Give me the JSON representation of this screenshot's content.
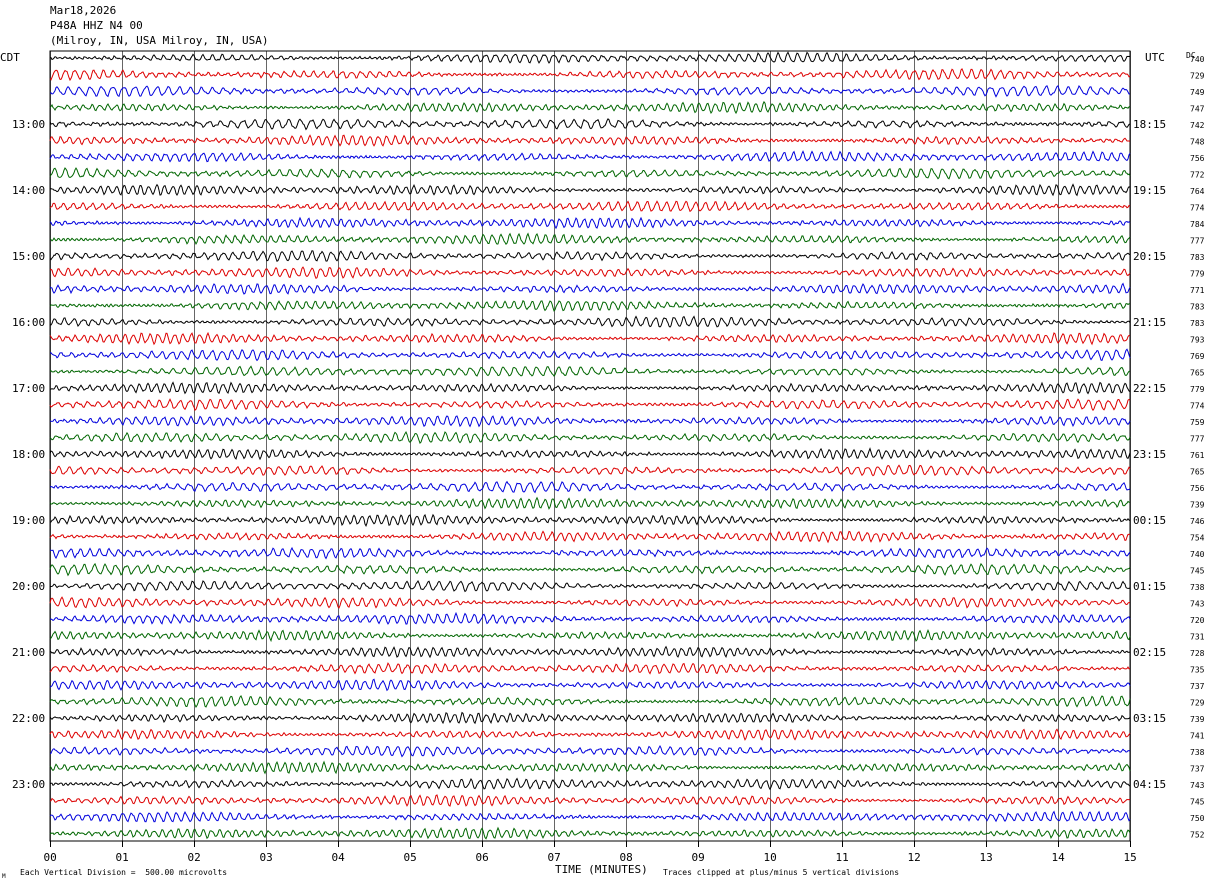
{
  "header": {
    "date": "Mar18,2026",
    "station": "P48A HHZ N4 00",
    "location": "(Milroy, IN, USA Milroy, IN, USA)"
  },
  "axes": {
    "left_tz": "CDT",
    "right_tz": "UTC",
    "dc_label": "DC",
    "xlabel": "TIME (MINUTES)"
  },
  "footer": {
    "scale_note": "Each Vertical Division =  500.00 microvolts",
    "clip_note": "Traces clipped at plus/minus 5 vertical divisions",
    "marker": "M"
  },
  "colors": {
    "trace_cycle": [
      "#000000",
      "#dd0000",
      "#0000dd",
      "#006600"
    ],
    "grid": "#000000",
    "background": "#ffffff"
  },
  "chart_data": {
    "type": "line",
    "subtype": "helicorder",
    "x_ticks": [
      "00",
      "01",
      "02",
      "03",
      "04",
      "05",
      "06",
      "07",
      "08",
      "09",
      "10",
      "11",
      "12",
      "13",
      "14",
      "15"
    ],
    "xlim": [
      0,
      15
    ],
    "trace_count": 48,
    "minutes_per_trace": 15,
    "left_hour_labels": [
      "13:00",
      "14:00",
      "15:00",
      "16:00",
      "17:00",
      "18:00",
      "19:00",
      "20:00",
      "21:00",
      "22:00",
      "23:00"
    ],
    "right_hour_labels": [
      "18:15",
      "19:15",
      "20:15",
      "21:15",
      "22:15",
      "23:15",
      "00:15",
      "01:15",
      "02:15",
      "03:15",
      "04:15"
    ],
    "dc_offsets": [
      740,
      729,
      749,
      747,
      742,
      748,
      756,
      772,
      764,
      774,
      784,
      777,
      783,
      779,
      771,
      783,
      783,
      793,
      769,
      765,
      779,
      774,
      759,
      777,
      761,
      765,
      756,
      739,
      746,
      754,
      740,
      745,
      738,
      743,
      720,
      731,
      728,
      735,
      737,
      729,
      739,
      741,
      738,
      737,
      743,
      745,
      750,
      752
    ]
  }
}
